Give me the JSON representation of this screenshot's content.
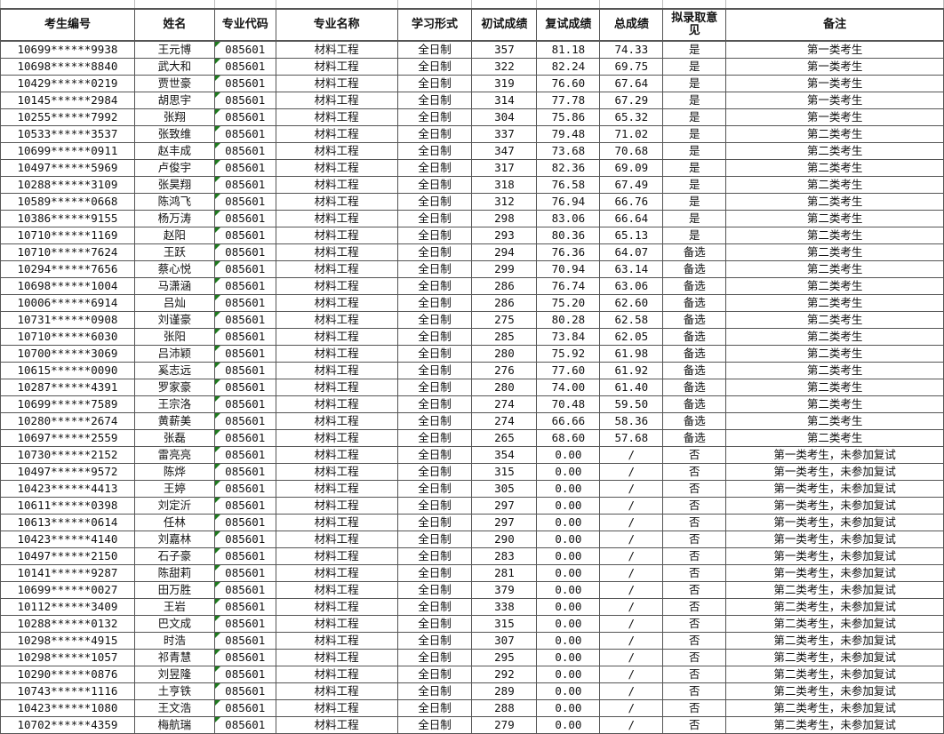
{
  "headers": [
    "考生编号",
    "姓名",
    "专业代码",
    "专业名称",
    "学习形式",
    "初试成绩",
    "复试成绩",
    "总成绩",
    "拟录取意见",
    "备注"
  ],
  "rows": [
    [
      "10699******9938",
      "王元博",
      "085601",
      "材料工程",
      "全日制",
      "357",
      "81.18",
      "74.33",
      "是",
      "第一类考生"
    ],
    [
      "10698******8840",
      "武大和",
      "085601",
      "材料工程",
      "全日制",
      "322",
      "82.24",
      "69.75",
      "是",
      "第一类考生"
    ],
    [
      "10429******0219",
      "贾世豪",
      "085601",
      "材料工程",
      "全日制",
      "319",
      "76.60",
      "67.64",
      "是",
      "第一类考生"
    ],
    [
      "10145******2984",
      "胡思宇",
      "085601",
      "材料工程",
      "全日制",
      "314",
      "77.78",
      "67.29",
      "是",
      "第一类考生"
    ],
    [
      "10255******7992",
      "张翔",
      "085601",
      "材料工程",
      "全日制",
      "304",
      "75.86",
      "65.32",
      "是",
      "第一类考生"
    ],
    [
      "10533******3537",
      "张致维",
      "085601",
      "材料工程",
      "全日制",
      "337",
      "79.48",
      "71.02",
      "是",
      "第二类考生"
    ],
    [
      "10699******0911",
      "赵丰成",
      "085601",
      "材料工程",
      "全日制",
      "347",
      "73.68",
      "70.68",
      "是",
      "第二类考生"
    ],
    [
      "10497******5969",
      "卢俊宇",
      "085601",
      "材料工程",
      "全日制",
      "317",
      "82.36",
      "69.09",
      "是",
      "第二类考生"
    ],
    [
      "10288******3109",
      "张昊翔",
      "085601",
      "材料工程",
      "全日制",
      "318",
      "76.58",
      "67.49",
      "是",
      "第二类考生"
    ],
    [
      "10589******0668",
      "陈鸿飞",
      "085601",
      "材料工程",
      "全日制",
      "312",
      "76.94",
      "66.76",
      "是",
      "第二类考生"
    ],
    [
      "10386******9155",
      "杨万涛",
      "085601",
      "材料工程",
      "全日制",
      "298",
      "83.06",
      "66.64",
      "是",
      "第二类考生"
    ],
    [
      "10710******1169",
      "赵阳",
      "085601",
      "材料工程",
      "全日制",
      "293",
      "80.36",
      "65.13",
      "是",
      "第二类考生"
    ],
    [
      "10710******7624",
      "王跃",
      "085601",
      "材料工程",
      "全日制",
      "294",
      "76.36",
      "64.07",
      "备选",
      "第二类考生"
    ],
    [
      "10294******7656",
      "蔡心悦",
      "085601",
      "材料工程",
      "全日制",
      "299",
      "70.94",
      "63.14",
      "备选",
      "第二类考生"
    ],
    [
      "10698******1004",
      "马潇涵",
      "085601",
      "材料工程",
      "全日制",
      "286",
      "76.74",
      "63.06",
      "备选",
      "第二类考生"
    ],
    [
      "10006******6914",
      "吕灿",
      "085601",
      "材料工程",
      "全日制",
      "286",
      "75.20",
      "62.60",
      "备选",
      "第二类考生"
    ],
    [
      "10731******0908",
      "刘谨豪",
      "085601",
      "材料工程",
      "全日制",
      "275",
      "80.28",
      "62.58",
      "备选",
      "第二类考生"
    ],
    [
      "10710******6030",
      "张阳",
      "085601",
      "材料工程",
      "全日制",
      "285",
      "73.84",
      "62.05",
      "备选",
      "第二类考生"
    ],
    [
      "10700******3069",
      "吕沛颖",
      "085601",
      "材料工程",
      "全日制",
      "280",
      "75.92",
      "61.98",
      "备选",
      "第二类考生"
    ],
    [
      "10615******0090",
      "奚志远",
      "085601",
      "材料工程",
      "全日制",
      "276",
      "77.60",
      "61.92",
      "备选",
      "第二类考生"
    ],
    [
      "10287******4391",
      "罗家豪",
      "085601",
      "材料工程",
      "全日制",
      "280",
      "74.00",
      "61.40",
      "备选",
      "第二类考生"
    ],
    [
      "10699******7589",
      "王宗洛",
      "085601",
      "材料工程",
      "全日制",
      "274",
      "70.48",
      "59.50",
      "备选",
      "第二类考生"
    ],
    [
      "10280******2674",
      "黄薪美",
      "085601",
      "材料工程",
      "全日制",
      "274",
      "66.66",
      "58.36",
      "备选",
      "第二类考生"
    ],
    [
      "10697******2559",
      "张磊",
      "085601",
      "材料工程",
      "全日制",
      "265",
      "68.60",
      "57.68",
      "备选",
      "第二类考生"
    ],
    [
      "10730******2152",
      "雷亮亮",
      "085601",
      "材料工程",
      "全日制",
      "354",
      "0.00",
      "/",
      "否",
      "第一类考生，未参加复试"
    ],
    [
      "10497******9572",
      "陈烨",
      "085601",
      "材料工程",
      "全日制",
      "315",
      "0.00",
      "/",
      "否",
      "第一类考生，未参加复试"
    ],
    [
      "10423******4413",
      "王婷",
      "085601",
      "材料工程",
      "全日制",
      "305",
      "0.00",
      "/",
      "否",
      "第一类考生，未参加复试"
    ],
    [
      "10611******0398",
      "刘定沂",
      "085601",
      "材料工程",
      "全日制",
      "297",
      "0.00",
      "/",
      "否",
      "第一类考生，未参加复试"
    ],
    [
      "10613******0614",
      "任林",
      "085601",
      "材料工程",
      "全日制",
      "297",
      "0.00",
      "/",
      "否",
      "第一类考生，未参加复试"
    ],
    [
      "10423******4140",
      "刘嘉林",
      "085601",
      "材料工程",
      "全日制",
      "290",
      "0.00",
      "/",
      "否",
      "第一类考生，未参加复试"
    ],
    [
      "10497******2150",
      "石子豪",
      "085601",
      "材料工程",
      "全日制",
      "283",
      "0.00",
      "/",
      "否",
      "第一类考生，未参加复试"
    ],
    [
      "10141******9287",
      "陈甜莉",
      "085601",
      "材料工程",
      "全日制",
      "281",
      "0.00",
      "/",
      "否",
      "第一类考生，未参加复试"
    ],
    [
      "10699******0027",
      "田万胜",
      "085601",
      "材料工程",
      "全日制",
      "379",
      "0.00",
      "/",
      "否",
      "第二类考生，未参加复试"
    ],
    [
      "10112******3409",
      "王岩",
      "085601",
      "材料工程",
      "全日制",
      "338",
      "0.00",
      "/",
      "否",
      "第二类考生，未参加复试"
    ],
    [
      "10288******0132",
      "巴文成",
      "085601",
      "材料工程",
      "全日制",
      "315",
      "0.00",
      "/",
      "否",
      "第二类考生，未参加复试"
    ],
    [
      "10298******4915",
      "时浩",
      "085601",
      "材料工程",
      "全日制",
      "307",
      "0.00",
      "/",
      "否",
      "第二类考生，未参加复试"
    ],
    [
      "10298******1057",
      "祁青慧",
      "085601",
      "材料工程",
      "全日制",
      "295",
      "0.00",
      "/",
      "否",
      "第二类考生，未参加复试"
    ],
    [
      "10290******0876",
      "刘昱隆",
      "085601",
      "材料工程",
      "全日制",
      "292",
      "0.00",
      "/",
      "否",
      "第二类考生，未参加复试"
    ],
    [
      "10743******1116",
      "土亨铁",
      "085601",
      "材料工程",
      "全日制",
      "289",
      "0.00",
      "/",
      "否",
      "第二类考生，未参加复试"
    ],
    [
      "10423******1080",
      "王文浩",
      "085601",
      "材料工程",
      "全日制",
      "288",
      "0.00",
      "/",
      "否",
      "第二类考生，未参加复试"
    ],
    [
      "10702******4359",
      "梅航瑞",
      "085601",
      "材料工程",
      "全日制",
      "279",
      "0.00",
      "/",
      "否",
      "第二类考生，未参加复试"
    ]
  ],
  "colors": {
    "grid": "#555555",
    "text-triangle": "#1e7a1e"
  }
}
